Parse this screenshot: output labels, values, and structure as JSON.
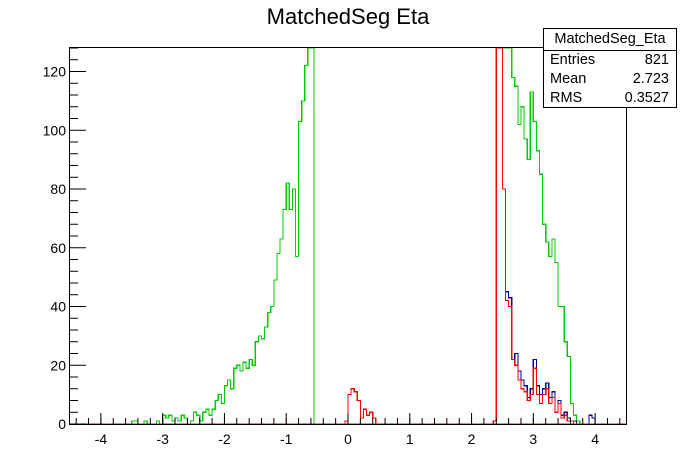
{
  "chart_data": {
    "type": "histogram",
    "title": "MatchedSeg Eta",
    "xlabel": "",
    "ylabel": "",
    "xlim": [
      -4.5,
      4.5
    ],
    "ylim": [
      0,
      128
    ],
    "x_ticks": [
      -4,
      -3,
      -2,
      -1,
      0,
      1,
      2,
      3,
      4
    ],
    "y_ticks": [
      0,
      20,
      40,
      60,
      80,
      100,
      120
    ],
    "grid": false,
    "bin_width": 0.05,
    "stats": {
      "name": "MatchedSeg_Eta",
      "rows": [
        {
          "label": "Entries",
          "value": "821"
        },
        {
          "label": "Mean",
          "value": "2.723"
        },
        {
          "label": "RMS",
          "value": "0.3527"
        }
      ]
    },
    "series": [
      {
        "color": "#00cc00",
        "bins": [
          [
            -3.5,
            1
          ],
          [
            -3.45,
            1
          ],
          [
            -3.4,
            0
          ],
          [
            -3.3,
            1
          ],
          [
            -3.2,
            0
          ],
          [
            -3.1,
            1
          ],
          [
            -3.0,
            3
          ],
          [
            -2.95,
            2
          ],
          [
            -2.9,
            3
          ],
          [
            -2.85,
            1
          ],
          [
            -2.8,
            2
          ],
          [
            -2.75,
            1
          ],
          [
            -2.7,
            3
          ],
          [
            -2.65,
            2
          ],
          [
            -2.6,
            0
          ],
          [
            -2.55,
            1
          ],
          [
            -2.5,
            4
          ],
          [
            -2.45,
            3
          ],
          [
            -2.4,
            1
          ],
          [
            -2.35,
            4
          ],
          [
            -2.3,
            5
          ],
          [
            -2.25,
            3
          ],
          [
            -2.2,
            5
          ],
          [
            -2.15,
            8
          ],
          [
            -2.1,
            10
          ],
          [
            -2.05,
            7
          ],
          [
            -2.0,
            13
          ],
          [
            -1.95,
            15
          ],
          [
            -1.9,
            12
          ],
          [
            -1.85,
            19
          ],
          [
            -1.8,
            20
          ],
          [
            -1.75,
            18
          ],
          [
            -1.7,
            21
          ],
          [
            -1.65,
            19
          ],
          [
            -1.6,
            22
          ],
          [
            -1.55,
            20
          ],
          [
            -1.5,
            28
          ],
          [
            -1.45,
            30
          ],
          [
            -1.4,
            29
          ],
          [
            -1.35,
            33
          ],
          [
            -1.3,
            38
          ],
          [
            -1.25,
            40
          ],
          [
            -1.2,
            49
          ],
          [
            -1.15,
            58
          ],
          [
            -1.1,
            63
          ],
          [
            -1.05,
            73
          ],
          [
            -1.0,
            82
          ],
          [
            -0.95,
            73
          ],
          [
            -0.9,
            80
          ],
          [
            -0.85,
            57
          ],
          [
            -0.8,
            103
          ],
          [
            -0.75,
            110
          ],
          [
            -0.7,
            122
          ],
          [
            -0.65,
            128
          ],
          [
            -0.6,
            128
          ],
          [
            2.35,
            1
          ],
          [
            2.4,
            128
          ],
          [
            2.45,
            128
          ],
          [
            2.5,
            128
          ],
          [
            2.55,
            128
          ],
          [
            2.6,
            128
          ],
          [
            2.65,
            118
          ],
          [
            2.7,
            115
          ],
          [
            2.75,
            102
          ],
          [
            2.8,
            108
          ],
          [
            2.85,
            97
          ],
          [
            2.9,
            90
          ],
          [
            2.95,
            113
          ],
          [
            3.0,
            103
          ],
          [
            3.05,
            93
          ],
          [
            3.1,
            85
          ],
          [
            3.15,
            68
          ],
          [
            3.2,
            62
          ],
          [
            3.25,
            57
          ],
          [
            3.3,
            63
          ],
          [
            3.35,
            55
          ],
          [
            3.4,
            40
          ],
          [
            3.45,
            40
          ],
          [
            3.5,
            28
          ],
          [
            3.55,
            23
          ],
          [
            3.6,
            7
          ],
          [
            3.65,
            3
          ],
          [
            3.7,
            1
          ],
          [
            3.75,
            0
          ]
        ]
      },
      {
        "color": "#000099",
        "bins": [
          [
            2.35,
            1
          ],
          [
            2.4,
            128
          ],
          [
            2.45,
            128
          ],
          [
            2.5,
            80
          ],
          [
            2.55,
            45
          ],
          [
            2.6,
            43
          ],
          [
            2.65,
            22
          ],
          [
            2.7,
            24
          ],
          [
            2.75,
            18
          ],
          [
            2.8,
            15
          ],
          [
            2.85,
            13
          ],
          [
            2.9,
            9
          ],
          [
            2.95,
            12
          ],
          [
            3.0,
            22
          ],
          [
            3.05,
            13
          ],
          [
            3.1,
            10
          ],
          [
            3.15,
            12
          ],
          [
            3.2,
            14
          ],
          [
            3.25,
            9
          ],
          [
            3.3,
            11
          ],
          [
            3.35,
            4
          ],
          [
            3.4,
            8
          ],
          [
            3.45,
            3
          ],
          [
            3.5,
            4
          ],
          [
            3.55,
            2
          ],
          [
            3.6,
            1
          ],
          [
            3.65,
            1
          ],
          [
            3.7,
            0
          ],
          [
            3.75,
            0
          ],
          [
            3.8,
            0
          ],
          [
            3.85,
            0
          ],
          [
            3.9,
            3
          ],
          [
            3.95,
            2
          ],
          [
            4.0,
            0
          ]
        ]
      },
      {
        "color": "#ff0000",
        "bins": [
          [
            -0.05,
            1
          ],
          [
            0.0,
            10
          ],
          [
            0.05,
            12
          ],
          [
            0.1,
            11
          ],
          [
            0.15,
            8
          ],
          [
            0.2,
            2
          ],
          [
            0.25,
            5
          ],
          [
            0.3,
            3
          ],
          [
            0.35,
            4
          ],
          [
            0.4,
            2
          ],
          [
            0.45,
            0
          ],
          [
            2.35,
            1
          ],
          [
            2.4,
            128
          ],
          [
            2.45,
            128
          ],
          [
            2.5,
            80
          ],
          [
            2.55,
            42
          ],
          [
            2.6,
            40
          ],
          [
            2.65,
            22
          ],
          [
            2.7,
            20
          ],
          [
            2.75,
            15
          ],
          [
            2.8,
            12
          ],
          [
            2.85,
            11
          ],
          [
            2.9,
            8
          ],
          [
            2.95,
            10
          ],
          [
            3.0,
            19
          ],
          [
            3.05,
            10
          ],
          [
            3.1,
            7
          ],
          [
            3.15,
            10
          ],
          [
            3.2,
            12
          ],
          [
            3.25,
            7
          ],
          [
            3.3,
            9
          ],
          [
            3.35,
            4
          ],
          [
            3.4,
            7
          ],
          [
            3.45,
            2
          ],
          [
            3.5,
            3
          ],
          [
            3.55,
            1
          ],
          [
            3.6,
            1
          ],
          [
            3.65,
            0
          ]
        ]
      }
    ]
  }
}
